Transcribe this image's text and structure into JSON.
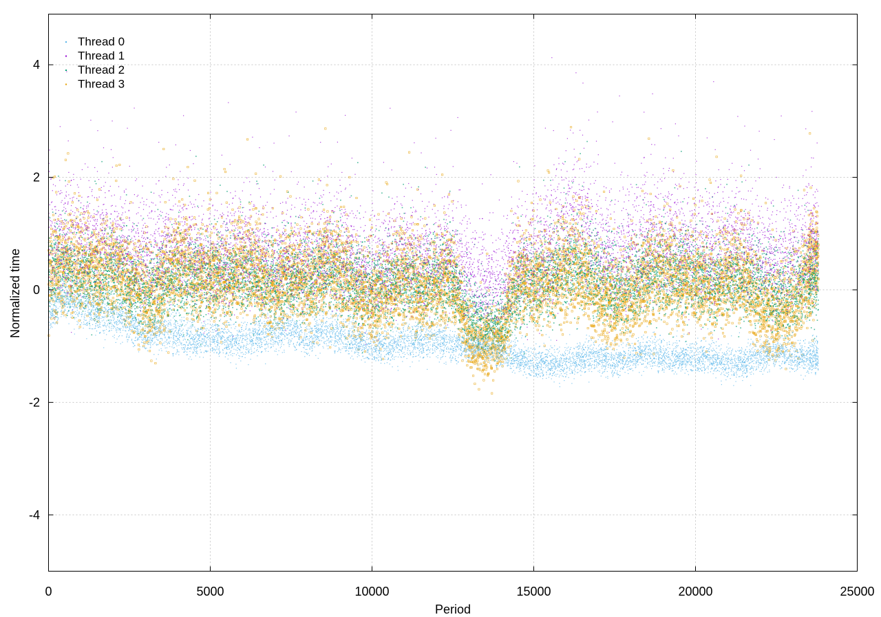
{
  "chart_data": {
    "type": "scatter",
    "title": "",
    "xlabel": "Period",
    "ylabel": "Normalized time",
    "xlim": [
      0,
      25000
    ],
    "ylim": [
      -5,
      4.9
    ],
    "xticks": [
      0,
      5000,
      10000,
      15000,
      20000,
      25000
    ],
    "xtick_labels": [
      "0",
      "5000",
      "10000",
      "15000",
      "20000",
      "25000"
    ],
    "yticks": [
      -4,
      -2,
      0,
      2,
      4
    ],
    "ytick_labels": [
      "-4",
      "-2",
      "0",
      "2",
      "4"
    ],
    "grid": true,
    "legend_position": "top-left",
    "series": [
      {
        "name": "Thread 0",
        "color": "#56b4e9",
        "marker": "dot",
        "x": [
          0,
          500,
          1000,
          1500,
          2000,
          2500,
          3000,
          3500,
          4000,
          4500,
          5000,
          5500,
          6000,
          6500,
          7000,
          7500,
          8000,
          8500,
          9000,
          9500,
          10000,
          10500,
          11000,
          11500,
          12000,
          12500,
          13000,
          13500,
          14000,
          14500,
          15000,
          15500,
          16000,
          16500,
          17000,
          17500,
          18000,
          18500,
          19000,
          19500,
          20000,
          20500,
          21000,
          21500,
          22000,
          22500,
          23000,
          23500,
          23800
        ],
        "y": [
          -0.4,
          -0.1,
          -0.3,
          -0.4,
          -0.5,
          -0.6,
          -0.8,
          -0.7,
          -0.8,
          -0.9,
          -0.8,
          -0.9,
          -0.9,
          -0.8,
          -0.8,
          -0.7,
          -0.9,
          -0.7,
          -0.8,
          -0.9,
          -1.0,
          -1.0,
          -0.9,
          -0.9,
          -0.9,
          -1.0,
          -1.0,
          -1.0,
          -1.1,
          -1.2,
          -1.3,
          -1.3,
          -1.3,
          -1.2,
          -1.2,
          -1.3,
          -1.2,
          -1.1,
          -1.2,
          -1.2,
          -1.2,
          -1.2,
          -1.3,
          -1.3,
          -1.2,
          -1.1,
          -1.2,
          -1.2,
          -1.2
        ],
        "spread": [
          0.4,
          0.4,
          0.4,
          0.4,
          0.4,
          0.4,
          0.35,
          0.4,
          0.4,
          0.35,
          0.35,
          0.35,
          0.35,
          0.35,
          0.35,
          0.35,
          0.35,
          0.35,
          0.35,
          0.35,
          0.3,
          0.35,
          0.35,
          0.35,
          0.35,
          0.35,
          0.3,
          0.3,
          0.3,
          0.3,
          0.3,
          0.3,
          0.3,
          0.3,
          0.3,
          0.3,
          0.3,
          0.3,
          0.3,
          0.3,
          0.3,
          0.3,
          0.3,
          0.3,
          0.3,
          0.3,
          0.3,
          0.3,
          0.3
        ]
      },
      {
        "name": "Thread 1",
        "color": "#9400d3",
        "marker": "dot",
        "x": [
          0,
          500,
          1000,
          1500,
          2000,
          2500,
          3000,
          3500,
          4000,
          4500,
          5000,
          5500,
          6000,
          6500,
          7000,
          7500,
          8000,
          8500,
          9000,
          9500,
          10000,
          10500,
          11000,
          11500,
          12000,
          12500,
          13000,
          13500,
          14000,
          14500,
          15000,
          15500,
          16000,
          16500,
          17000,
          17500,
          18000,
          18500,
          19000,
          19500,
          20000,
          20500,
          21000,
          21500,
          22000,
          22500,
          23000,
          23500,
          23800
        ],
        "y": [
          1.0,
          0.9,
          0.8,
          0.9,
          0.9,
          0.7,
          0.6,
          0.7,
          0.9,
          0.7,
          0.6,
          0.6,
          0.7,
          0.6,
          0.5,
          0.6,
          0.6,
          0.7,
          0.8,
          0.5,
          0.4,
          0.5,
          0.6,
          0.5,
          0.6,
          0.7,
          0.3,
          0.1,
          0.2,
          0.6,
          0.7,
          0.8,
          1.1,
          1.2,
          0.8,
          0.6,
          0.7,
          0.9,
          1.0,
          0.9,
          0.8,
          0.7,
          0.8,
          0.8,
          0.7,
          0.5,
          0.6,
          0.8,
          0.9
        ],
        "spread": [
          1.1,
          1.1,
          1.1,
          1.0,
          1.0,
          1.0,
          1.0,
          1.0,
          1.1,
          1.0,
          1.0,
          1.0,
          1.0,
          1.0,
          1.0,
          1.0,
          1.0,
          1.0,
          1.2,
          1.0,
          1.0,
          1.0,
          1.0,
          1.0,
          1.0,
          1.0,
          0.9,
          0.9,
          0.9,
          1.1,
          1.1,
          1.2,
          1.3,
          1.3,
          1.1,
          1.1,
          1.1,
          1.2,
          1.2,
          1.2,
          1.1,
          1.1,
          1.1,
          1.1,
          1.0,
          1.0,
          1.0,
          1.1,
          1.1
        ]
      },
      {
        "name": "Thread 2",
        "color": "#009e73",
        "marker": "cross",
        "x": [
          0,
          500,
          1000,
          1500,
          2000,
          2500,
          3000,
          3500,
          4000,
          4500,
          5000,
          5500,
          6000,
          6500,
          7000,
          7500,
          8000,
          8500,
          9000,
          9500,
          10000,
          10500,
          11000,
          11500,
          12000,
          12500,
          13000,
          13500,
          14000,
          14500,
          15000,
          15500,
          16000,
          16500,
          17000,
          17500,
          18000,
          18500,
          19000,
          19500,
          20000,
          20500,
          21000,
          21500,
          22000,
          22500,
          23000,
          23500,
          23800
        ],
        "y": [
          0.3,
          0.4,
          0.3,
          0.2,
          0.3,
          0.1,
          0.0,
          0.1,
          0.3,
          0.2,
          0.2,
          0.2,
          0.3,
          0.2,
          0.1,
          0.2,
          0.2,
          0.3,
          0.4,
          0.1,
          0.0,
          0.1,
          0.2,
          0.1,
          0.2,
          0.2,
          -0.4,
          -0.6,
          -0.5,
          0.0,
          0.1,
          0.2,
          0.4,
          0.5,
          0.2,
          0.0,
          0.1,
          0.3,
          0.4,
          0.3,
          0.2,
          0.1,
          0.2,
          0.2,
          0.1,
          -0.1,
          0.0,
          0.2,
          0.3
        ],
        "spread": [
          0.8,
          0.8,
          0.8,
          0.8,
          0.8,
          0.8,
          0.8,
          0.8,
          0.8,
          0.8,
          0.8,
          0.8,
          0.8,
          0.8,
          0.8,
          0.8,
          0.8,
          0.8,
          0.9,
          0.8,
          0.8,
          0.8,
          0.8,
          0.8,
          0.8,
          0.8,
          0.6,
          0.6,
          0.6,
          0.8,
          0.8,
          0.9,
          0.9,
          0.9,
          0.8,
          0.8,
          0.8,
          0.8,
          0.9,
          0.8,
          0.8,
          0.8,
          0.8,
          0.8,
          0.8,
          0.8,
          0.8,
          0.8,
          0.8
        ]
      },
      {
        "name": "Thread 3",
        "color": "#e69f00",
        "marker": "square",
        "x": [
          0,
          500,
          1000,
          1500,
          2000,
          2500,
          3000,
          3500,
          4000,
          4500,
          5000,
          5500,
          6000,
          6500,
          7000,
          7500,
          8000,
          8500,
          9000,
          9500,
          10000,
          10500,
          11000,
          11500,
          12000,
          12500,
          13000,
          13500,
          14000,
          14500,
          15000,
          15500,
          16000,
          16500,
          17000,
          17500,
          18000,
          18500,
          19000,
          19500,
          20000,
          20500,
          21000,
          21500,
          22000,
          22500,
          23000,
          23500,
          23800
        ],
        "y": [
          0.2,
          0.5,
          0.4,
          0.3,
          0.4,
          0.2,
          -0.1,
          0.0,
          0.5,
          0.2,
          0.3,
          0.2,
          0.4,
          0.3,
          0.0,
          0.3,
          0.2,
          0.4,
          0.3,
          -0.1,
          -0.2,
          0.0,
          0.2,
          0.0,
          0.1,
          0.2,
          -0.8,
          -1.0,
          -0.9,
          0.2,
          0.1,
          0.2,
          0.3,
          0.4,
          -0.1,
          -0.3,
          0.0,
          0.2,
          0.3,
          0.1,
          0.2,
          0.0,
          0.2,
          0.3,
          -0.3,
          -0.5,
          -0.2,
          0.3,
          0.6
        ],
        "spread": [
          0.9,
          0.9,
          0.9,
          0.9,
          0.9,
          0.9,
          0.9,
          0.9,
          0.9,
          0.9,
          0.9,
          0.9,
          0.9,
          0.9,
          0.9,
          0.9,
          0.9,
          0.9,
          1.0,
          0.9,
          0.9,
          0.9,
          0.9,
          0.9,
          0.9,
          0.9,
          0.6,
          0.6,
          0.6,
          0.9,
          0.9,
          0.9,
          1.0,
          1.0,
          0.9,
          0.9,
          0.9,
          0.9,
          1.0,
          0.9,
          0.9,
          0.9,
          0.9,
          0.9,
          0.9,
          0.9,
          0.9,
          0.9,
          0.9
        ]
      }
    ]
  }
}
